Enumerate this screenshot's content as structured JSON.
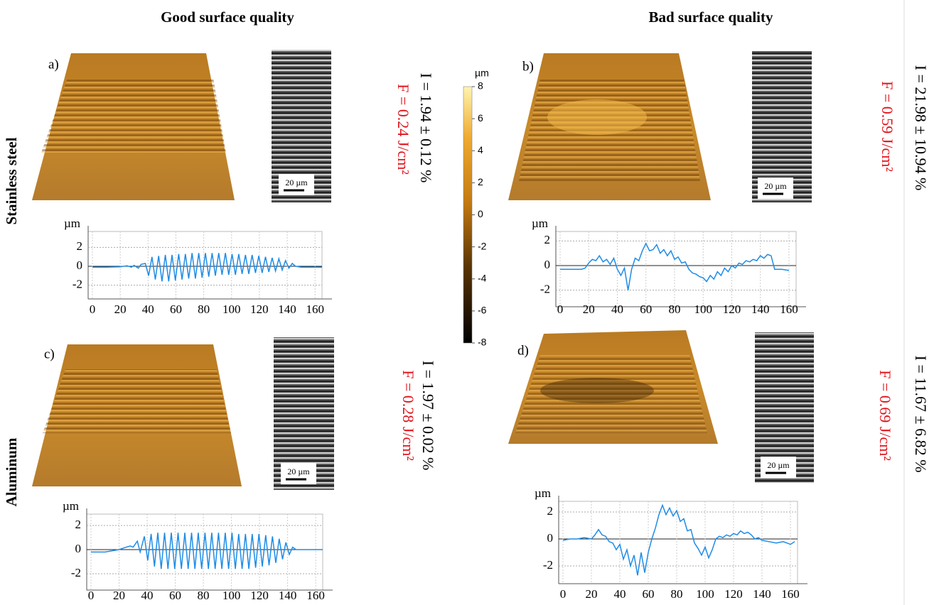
{
  "headers": [
    "Good surface quality",
    "Bad surface quality"
  ],
  "rows": [
    "Stainless steel",
    "Aluminum"
  ],
  "colorbar": {
    "unit": "µm",
    "lim": [
      -8,
      8
    ],
    "ticks": [
      8,
      6,
      4,
      2,
      0,
      -2,
      -4,
      -6,
      -8
    ]
  },
  "panels": [
    {
      "label": "a)",
      "scale_bar": "20 µm",
      "fluence": "F = 0.24 J/cm²",
      "irregularity": "I = 1.94 ± 0.12 %"
    },
    {
      "label": "b)",
      "scale_bar": "20 µm",
      "fluence": "F = 0.59 J/cm²",
      "irregularity": "I = 21.98 ± 10.94 %"
    },
    {
      "label": "c)",
      "scale_bar": "20 µm",
      "fluence": "F = 0.28 J/cm²",
      "irregularity": "I = 1.97 ± 0.02 %"
    },
    {
      "label": "d)",
      "scale_bar": "20 µm",
      "fluence": "F = 0.69 J/cm²",
      "irregularity": "I = 11.67 ± 6.82 %"
    }
  ],
  "chart_data": [
    {
      "type": "line",
      "y_label": "µm",
      "xlim": [
        0,
        165
      ],
      "ylim": [
        -3,
        3
      ],
      "xticks": [
        0,
        20,
        40,
        60,
        80,
        100,
        120,
        140,
        160
      ],
      "yticks": [
        -2,
        0,
        2
      ],
      "grid": true,
      "x": [
        0,
        10,
        20,
        25,
        28,
        30,
        33,
        35,
        38,
        40.4,
        42.8,
        45.2,
        47.6,
        50,
        52.4,
        54.8,
        57.2,
        59.6,
        62,
        64.4,
        66.8,
        69.2,
        71.6,
        74,
        76.4,
        78.8,
        81.2,
        83.6,
        86,
        88.4,
        90.8,
        93.2,
        95.6,
        98,
        100.4,
        102.8,
        105.2,
        107.6,
        110,
        112.4,
        114.8,
        117.2,
        119.6,
        122,
        124.4,
        126.8,
        129.2,
        131.6,
        134,
        136.4,
        138.8,
        141.2,
        143.6,
        146,
        150,
        155,
        165
      ],
      "series": [
        {
          "color": "#1e8ce6",
          "values": [
            -0.1,
            -0.1,
            -0.05,
            0.05,
            -0.1,
            0.1,
            -0.2,
            0.2,
            0.3,
            -1.0,
            1.0,
            -1.4,
            1.1,
            -1.6,
            1.2,
            -1.6,
            1.2,
            -1.5,
            1.3,
            -1.4,
            1.3,
            -1.3,
            1.4,
            -1.3,
            1.4,
            -1.2,
            1.4,
            -1.1,
            1.4,
            -1.0,
            1.4,
            -0.9,
            1.4,
            -0.9,
            1.3,
            -0.9,
            1.3,
            -0.8,
            1.2,
            -0.8,
            1.2,
            -0.7,
            1.1,
            -0.7,
            1.0,
            -0.6,
            0.9,
            -0.5,
            0.8,
            -0.4,
            0.6,
            -0.2,
            0.3,
            0,
            -0.1,
            -0.1,
            -0.1
          ]
        }
      ]
    },
    {
      "type": "line",
      "y_label": "µm",
      "xlim": [
        0,
        165
      ],
      "ylim": [
        -3,
        3
      ],
      "xticks": [
        0,
        20,
        40,
        60,
        80,
        100,
        120,
        140,
        160
      ],
      "yticks": [
        -2,
        0,
        2
      ],
      "grid": true,
      "x": [
        0,
        5,
        10,
        15,
        17.5,
        20,
        22.5,
        25,
        27.5,
        30,
        32.5,
        35,
        37.5,
        40,
        42.5,
        45,
        47.5,
        50,
        52.5,
        55,
        57.5,
        60,
        62.5,
        65,
        67.5,
        70,
        72.5,
        75,
        77.5,
        80,
        82.5,
        85,
        87.5,
        90,
        92.5,
        95,
        97.5,
        100,
        102.5,
        105,
        107.5,
        110,
        112.5,
        115,
        117.5,
        120,
        122.5,
        125,
        127.5,
        130,
        132.5,
        135,
        137.5,
        140,
        142.5,
        145,
        147.5,
        150,
        155,
        160
      ],
      "series": [
        {
          "color": "#1e8ce6",
          "values": [
            -0.3,
            -0.3,
            -0.3,
            -0.3,
            -0.2,
            0.2,
            0.5,
            0.4,
            0.8,
            0.3,
            0.5,
            0.1,
            0.6,
            -0.3,
            -0.8,
            -0.2,
            -2.0,
            -0.3,
            0.6,
            0.4,
            1.2,
            1.8,
            1.2,
            1.3,
            1.7,
            1.0,
            1.3,
            0.8,
            1.2,
            0.5,
            0.7,
            0.2,
            0.3,
            -0.3,
            -0.6,
            -0.7,
            -0.9,
            -1.0,
            -1.3,
            -0.8,
            -1.1,
            -0.5,
            -0.8,
            -0.2,
            -0.5,
            0,
            -0.2,
            0.2,
            0.1,
            0.4,
            0.3,
            0.5,
            0.4,
            0.8,
            0.6,
            0.9,
            0.8,
            -0.3,
            -0.3,
            -0.4
          ]
        }
      ]
    },
    {
      "type": "line",
      "y_label": "µm",
      "xlim": [
        0,
        165
      ],
      "ylim": [
        -3,
        3
      ],
      "xticks": [
        0,
        20,
        40,
        60,
        80,
        100,
        120,
        140,
        160
      ],
      "yticks": [
        -2,
        0,
        2
      ],
      "grid": true,
      "x": [
        0,
        10,
        20,
        25,
        28,
        30,
        33,
        35,
        38,
        40.4,
        42.8,
        45.2,
        47.6,
        50,
        52.4,
        54.8,
        57.2,
        59.6,
        62,
        64.4,
        66.8,
        69.2,
        71.6,
        74,
        76.4,
        78.8,
        81.2,
        83.6,
        86,
        88.4,
        90.8,
        93.2,
        95.6,
        98,
        100.4,
        102.8,
        105.2,
        107.6,
        110,
        112.4,
        114.8,
        117.2,
        119.6,
        122,
        124.4,
        126.8,
        129.2,
        131.6,
        134,
        136.4,
        138.8,
        141.2,
        143.6,
        146,
        150,
        155,
        165
      ],
      "series": [
        {
          "color": "#1e8ce6",
          "values": [
            -0.2,
            -0.2,
            0,
            0.2,
            0.3,
            0.2,
            0.7,
            -0.2,
            1.1,
            -0.9,
            1.3,
            -1.4,
            1.4,
            -1.6,
            1.4,
            -1.6,
            1.4,
            -1.6,
            1.4,
            -1.6,
            1.4,
            -1.6,
            1.4,
            -1.6,
            1.4,
            -1.6,
            1.4,
            -1.6,
            1.4,
            -1.6,
            1.4,
            -1.6,
            1.4,
            -1.6,
            1.4,
            -1.6,
            1.3,
            -1.6,
            1.3,
            -1.6,
            1.3,
            -1.5,
            1.3,
            -1.4,
            1.2,
            -1.3,
            1.1,
            -1.1,
            0.9,
            -0.8,
            0.6,
            -0.4,
            0.2,
            0,
            0,
            0,
            0
          ]
        }
      ]
    },
    {
      "type": "line",
      "y_label": "µm",
      "xlim": [
        0,
        165
      ],
      "ylim": [
        -3,
        3
      ],
      "xticks": [
        0,
        20,
        40,
        60,
        80,
        100,
        120,
        140,
        160
      ],
      "yticks": [
        -2,
        0,
        2
      ],
      "grid": true,
      "x": [
        0,
        5,
        10,
        15,
        20,
        22.5,
        25,
        27.5,
        30,
        32.5,
        35,
        37.5,
        40,
        42.5,
        45,
        47.5,
        50,
        52.5,
        55,
        57.5,
        60,
        62.5,
        65,
        67.5,
        70,
        72.5,
        75,
        77.5,
        80,
        82.5,
        85,
        87.5,
        90,
        92.5,
        95,
        97.5,
        100,
        102.5,
        105,
        107.5,
        110,
        112.5,
        115,
        117.5,
        120,
        122.5,
        125,
        127.5,
        130,
        132.5,
        135,
        137.5,
        140,
        145,
        150,
        155,
        160,
        163
      ],
      "series": [
        {
          "color": "#1e8ce6",
          "values": [
            -0.1,
            0,
            0,
            0.1,
            0,
            0.3,
            0.7,
            0.3,
            0.2,
            -0.2,
            -0.3,
            -0.8,
            -0.4,
            -1.5,
            -0.8,
            -2.0,
            -1.2,
            -2.7,
            -1.0,
            -2.5,
            -1.0,
            0,
            0.8,
            1.8,
            2.5,
            1.8,
            2.3,
            1.7,
            2.1,
            1.3,
            1.5,
            0.6,
            0.7,
            -0.3,
            -0.7,
            -1.2,
            -0.6,
            -1.4,
            -0.8,
            0,
            0.2,
            0.1,
            0.3,
            0.2,
            0.4,
            0.3,
            0.6,
            0.4,
            0.5,
            0.3,
            0,
            0.1,
            -0.1,
            -0.2,
            -0.3,
            -0.2,
            -0.4,
            -0.2
          ]
        }
      ]
    }
  ]
}
